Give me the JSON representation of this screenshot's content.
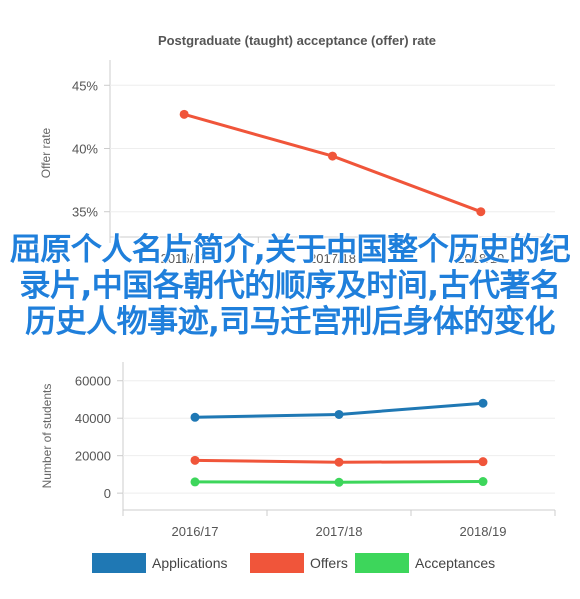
{
  "chart_data": [
    {
      "type": "line",
      "title": "Postgraduate (taught) acceptance (offer) rate",
      "ylabel": "Offer rate",
      "categories": [
        "2016/17",
        "2017/18",
        "2018/19"
      ],
      "yticks": [
        "35%",
        "40%",
        "45%"
      ],
      "ylim": [
        33,
        47
      ],
      "series": [
        {
          "values": [
            42.7,
            39.4,
            35.0
          ],
          "color": "#f0553a"
        }
      ]
    },
    {
      "type": "line",
      "ylabel": "Number of students",
      "categories": [
        "2016/17",
        "2017/18",
        "2018/19"
      ],
      "yticks": [
        "0",
        "20000",
        "40000",
        "60000"
      ],
      "ylim": [
        -9000,
        70000
      ],
      "legend_position": "bottom",
      "series": [
        {
          "name": "Applications",
          "values": [
            40500,
            42000,
            48000
          ],
          "color": "#1f78b4"
        },
        {
          "name": "Offers",
          "values": [
            17500,
            16500,
            16800
          ],
          "color": "#f0553a"
        },
        {
          "name": "Acceptances",
          "values": [
            6000,
            5800,
            6200
          ],
          "color": "#3dd65b"
        }
      ]
    }
  ],
  "overlay_text": "屈原个人名片简介,关于中国整个历史的纪录片,中国各朝代的顺序及时间,古代著名历史人物事迹,司马迁宫刑后身体的变化"
}
